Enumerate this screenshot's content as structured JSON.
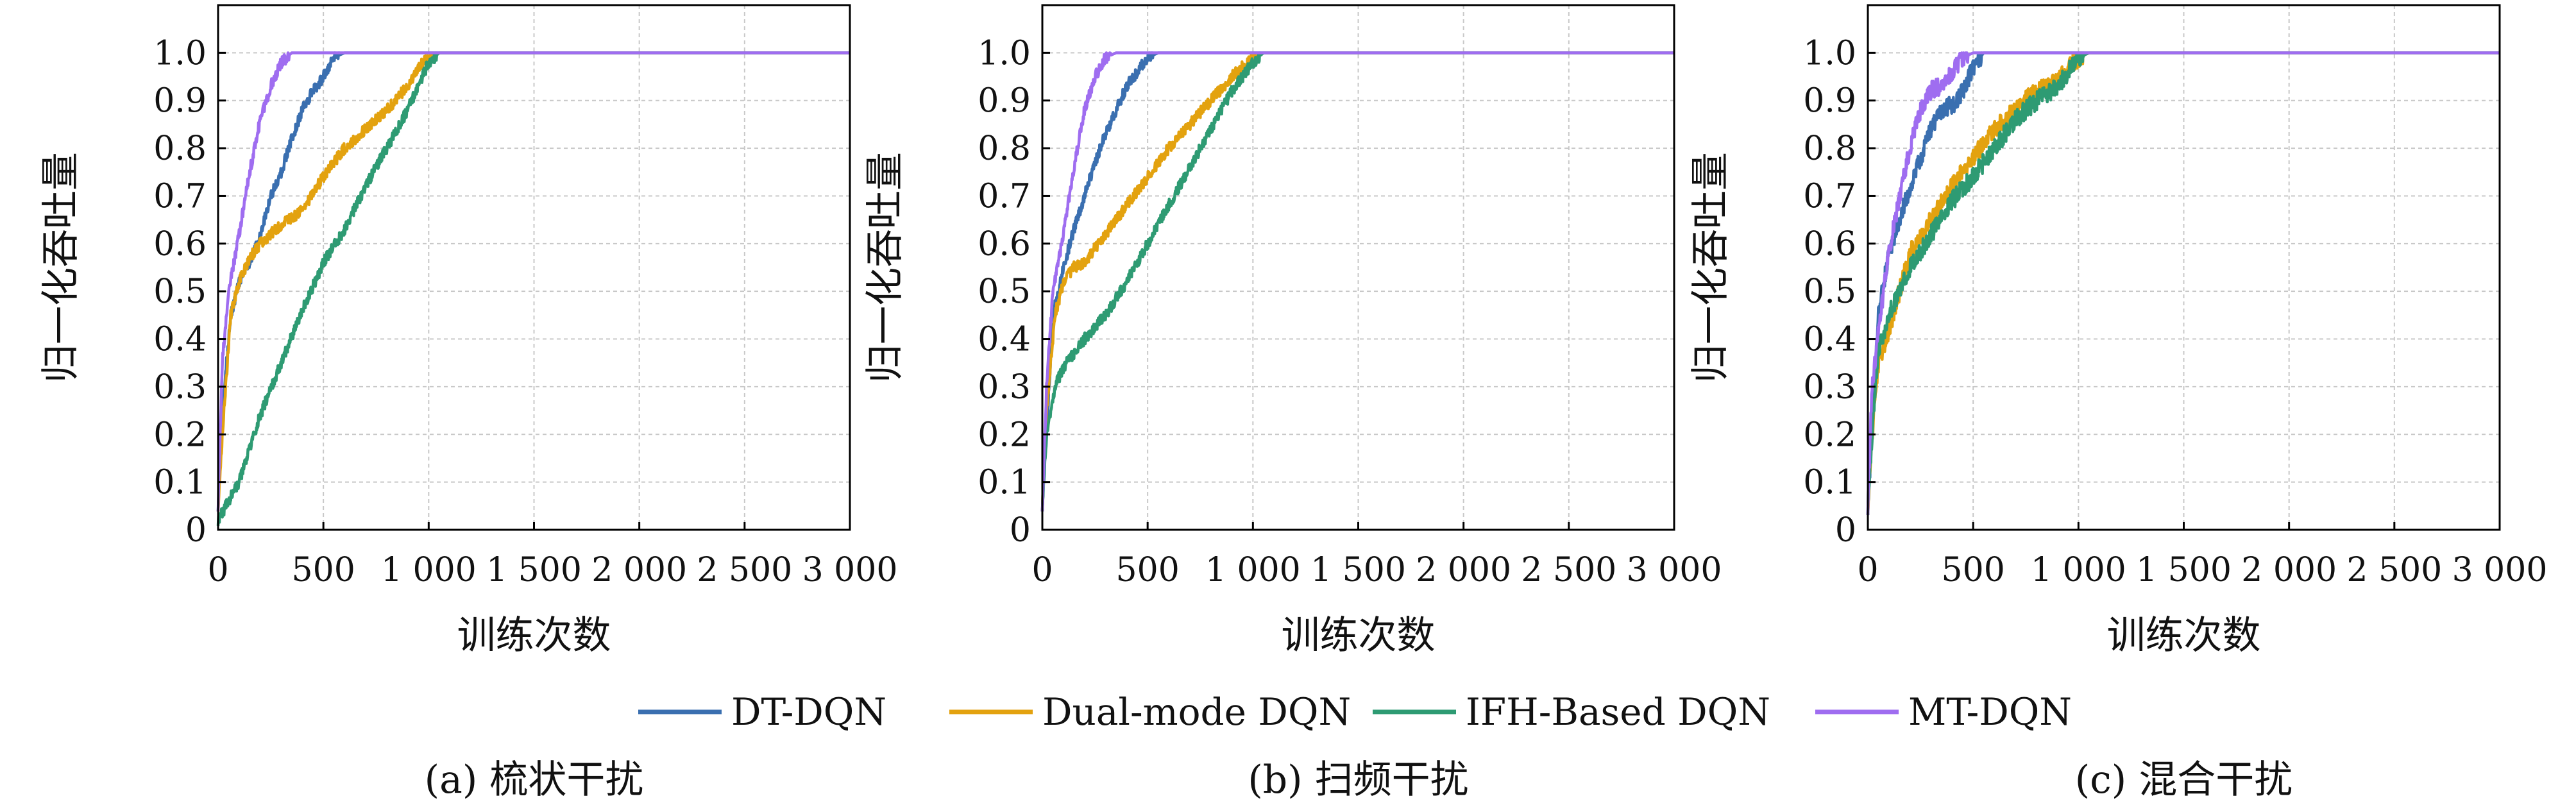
{
  "chart_data": [
    {
      "type": "line",
      "caption": "(a) 梳状干扰",
      "xlabel": "训练次数",
      "ylabel": "归一化吞吐量",
      "xlim": [
        0,
        3000
      ],
      "ylim": [
        0,
        1.1
      ],
      "x_tick_labels": [
        "0",
        "500",
        "1 000",
        "1 500",
        "2 000",
        "2 500",
        "3 000"
      ],
      "x_ticks": [
        0,
        500,
        1000,
        1500,
        2000,
        2500,
        3000
      ],
      "y_tick_labels": [
        "0",
        "0.1",
        "0.2",
        "0.3",
        "0.4",
        "0.5",
        "0.6",
        "0.7",
        "0.8",
        "0.9",
        "1.0"
      ],
      "y_ticks": [
        0,
        0.1,
        0.2,
        0.3,
        0.4,
        0.5,
        0.6,
        0.7,
        0.8,
        0.9,
        1.0
      ],
      "grid": true,
      "series": [
        {
          "name": "DT-DQN",
          "color": "#3a6fb0",
          "noise": 0.012,
          "x": [
            0,
            20,
            60,
            100,
            150,
            200,
            250,
            300,
            350,
            400,
            450,
            500,
            550,
            600,
            650,
            700,
            800,
            1000,
            3000
          ],
          "y": [
            0.05,
            0.25,
            0.45,
            0.52,
            0.56,
            0.62,
            0.7,
            0.75,
            0.82,
            0.88,
            0.92,
            0.95,
            0.99,
            1.0,
            1.0,
            1.0,
            1.0,
            1.0,
            1.0
          ]
        },
        {
          "name": "Dual-mode DQN",
          "color": "#e3a20f",
          "noise": 0.012,
          "x": [
            0,
            20,
            60,
            100,
            150,
            200,
            250,
            300,
            400,
            500,
            600,
            700,
            800,
            900,
            950,
            1000,
            1050,
            3000
          ],
          "y": [
            0.05,
            0.2,
            0.45,
            0.52,
            0.57,
            0.6,
            0.62,
            0.64,
            0.67,
            0.74,
            0.8,
            0.84,
            0.88,
            0.93,
            0.97,
            0.99,
            1.0,
            1.0
          ]
        },
        {
          "name": "IFH-Based DQN",
          "color": "#2e9b73",
          "noise": 0.012,
          "x": [
            0,
            50,
            100,
            150,
            200,
            300,
            400,
            500,
            600,
            700,
            800,
            900,
            950,
            1000,
            1050,
            1100,
            3000
          ],
          "y": [
            0.02,
            0.06,
            0.1,
            0.17,
            0.24,
            0.35,
            0.46,
            0.56,
            0.63,
            0.72,
            0.8,
            0.88,
            0.93,
            0.98,
            1.0,
            1.0,
            1.0
          ]
        },
        {
          "name": "MT-DQN",
          "color": "#9f6df0",
          "noise": 0.012,
          "x": [
            0,
            20,
            50,
            100,
            150,
            200,
            250,
            300,
            350,
            400,
            450,
            3000
          ],
          "y": [
            0.05,
            0.35,
            0.5,
            0.62,
            0.75,
            0.86,
            0.93,
            0.98,
            1.0,
            1.0,
            1.0,
            1.0
          ]
        }
      ]
    },
    {
      "type": "line",
      "caption": "(b) 扫频干扰",
      "xlabel": "训练次数",
      "ylabel": "归一化吞吐量",
      "xlim": [
        0,
        3000
      ],
      "ylim": [
        0,
        1.1
      ],
      "x_tick_labels": [
        "0",
        "500",
        "1 000",
        "1 500",
        "2 000",
        "2 500",
        "3 000"
      ],
      "x_ticks": [
        0,
        500,
        1000,
        1500,
        2000,
        2500,
        3000
      ],
      "y_tick_labels": [
        "0",
        "0.1",
        "0.2",
        "0.3",
        "0.4",
        "0.5",
        "0.6",
        "0.7",
        "0.8",
        "0.9",
        "1.0"
      ],
      "y_ticks": [
        0,
        0.1,
        0.2,
        0.3,
        0.4,
        0.5,
        0.6,
        0.7,
        0.8,
        0.9,
        1.0
      ],
      "grid": true,
      "series": [
        {
          "name": "DT-DQN",
          "color": "#3a6fb0",
          "noise": 0.012,
          "x": [
            0,
            20,
            50,
            100,
            150,
            200,
            250,
            300,
            350,
            400,
            450,
            500,
            550,
            600,
            650,
            700,
            3000
          ],
          "y": [
            0.05,
            0.2,
            0.45,
            0.55,
            0.63,
            0.7,
            0.77,
            0.83,
            0.88,
            0.93,
            0.96,
            0.99,
            1.0,
            1.0,
            1.0,
            1.0,
            1.0
          ]
        },
        {
          "name": "Dual-mode DQN",
          "color": "#e3a20f",
          "noise": 0.012,
          "x": [
            0,
            20,
            60,
            100,
            150,
            200,
            300,
            400,
            500,
            600,
            700,
            800,
            900,
            1000,
            1050,
            3000
          ],
          "y": [
            0.05,
            0.25,
            0.45,
            0.52,
            0.55,
            0.56,
            0.62,
            0.68,
            0.74,
            0.8,
            0.85,
            0.9,
            0.95,
            0.99,
            1.0,
            1.0
          ]
        },
        {
          "name": "IFH-Based DQN",
          "color": "#2e9b73",
          "noise": 0.012,
          "x": [
            0,
            20,
            60,
            100,
            200,
            300,
            400,
            500,
            600,
            700,
            800,
            900,
            1000,
            1050,
            1100,
            3000
          ],
          "y": [
            0.05,
            0.2,
            0.3,
            0.34,
            0.4,
            0.45,
            0.52,
            0.6,
            0.68,
            0.76,
            0.84,
            0.92,
            0.98,
            1.0,
            1.0,
            1.0
          ]
        },
        {
          "name": "MT-DQN",
          "color": "#9f6df0",
          "noise": 0.012,
          "x": [
            0,
            20,
            50,
            100,
            150,
            200,
            250,
            300,
            350,
            400,
            3000
          ],
          "y": [
            0.05,
            0.3,
            0.5,
            0.62,
            0.76,
            0.88,
            0.95,
            0.99,
            1.0,
            1.0,
            1.0
          ]
        }
      ]
    },
    {
      "type": "line",
      "caption": "(c) 混合干扰",
      "xlabel": "训练次数",
      "ylabel": "归一化吞吐量",
      "xlim": [
        0,
        3000
      ],
      "ylim": [
        0,
        1.1
      ],
      "x_tick_labels": [
        "0",
        "500",
        "1 000",
        "1 500",
        "2 000",
        "2 500",
        "3 000"
      ],
      "x_ticks": [
        0,
        500,
        1000,
        1500,
        2000,
        2500,
        3000
      ],
      "y_tick_labels": [
        "0",
        "0.1",
        "0.2",
        "0.3",
        "0.4",
        "0.5",
        "0.6",
        "0.7",
        "0.8",
        "0.9",
        "1.0"
      ],
      "y_ticks": [
        0,
        0.1,
        0.2,
        0.3,
        0.4,
        0.5,
        0.6,
        0.7,
        0.8,
        0.9,
        1.0
      ],
      "grid": true,
      "series": [
        {
          "name": "DT-DQN",
          "color": "#3a6fb0",
          "noise": 0.02,
          "x": [
            0,
            20,
            50,
            100,
            150,
            200,
            250,
            300,
            350,
            400,
            450,
            500,
            550,
            600,
            700,
            3000
          ],
          "y": [
            0.05,
            0.2,
            0.45,
            0.58,
            0.65,
            0.72,
            0.78,
            0.84,
            0.88,
            0.89,
            0.92,
            0.97,
            1.0,
            1.0,
            1.0,
            1.0
          ]
        },
        {
          "name": "Dual-mode DQN",
          "color": "#e3a20f",
          "noise": 0.02,
          "x": [
            0,
            20,
            50,
            100,
            150,
            200,
            300,
            400,
            500,
            600,
            700,
            800,
            900,
            950,
            1000,
            1050,
            3000
          ],
          "y": [
            0.05,
            0.2,
            0.35,
            0.42,
            0.5,
            0.58,
            0.65,
            0.72,
            0.78,
            0.84,
            0.88,
            0.92,
            0.94,
            0.97,
            0.99,
            1.0,
            1.0
          ]
        },
        {
          "name": "IFH-Based DQN",
          "color": "#2e9b73",
          "noise": 0.02,
          "x": [
            0,
            20,
            50,
            100,
            150,
            200,
            300,
            400,
            500,
            600,
            700,
            800,
            900,
            950,
            1000,
            1050,
            3000
          ],
          "y": [
            0.05,
            0.2,
            0.38,
            0.45,
            0.5,
            0.55,
            0.62,
            0.69,
            0.74,
            0.8,
            0.86,
            0.9,
            0.93,
            0.96,
            0.99,
            1.0,
            1.0
          ]
        },
        {
          "name": "MT-DQN",
          "color": "#9f6df0",
          "noise": 0.02,
          "x": [
            0,
            20,
            50,
            100,
            150,
            200,
            250,
            300,
            350,
            400,
            450,
            500,
            3000
          ],
          "y": [
            0.05,
            0.3,
            0.42,
            0.58,
            0.7,
            0.8,
            0.88,
            0.92,
            0.93,
            0.96,
            0.99,
            1.0,
            1.0
          ]
        }
      ]
    }
  ],
  "legend": {
    "placement": "bottom-center",
    "items": [
      {
        "label": "DT-DQN",
        "color": "#3a6fb0"
      },
      {
        "label": "Dual-mode DQN",
        "color": "#e3a20f"
      },
      {
        "label": "IFH-Based DQN",
        "color": "#2e9b73"
      },
      {
        "label": "MT-DQN",
        "color": "#9f6df0"
      }
    ]
  }
}
